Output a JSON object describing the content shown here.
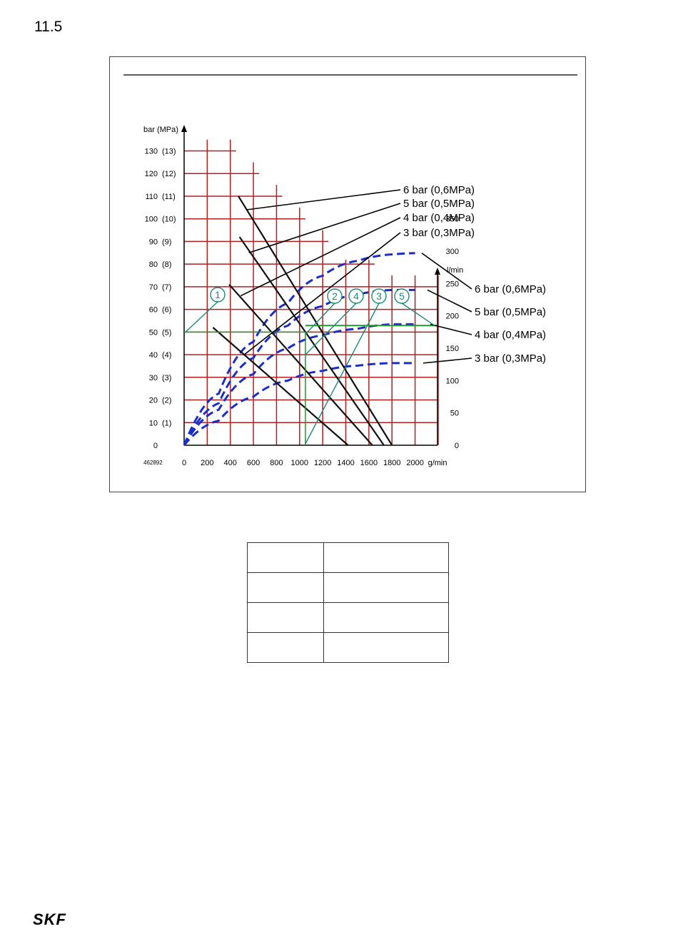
{
  "section": "11.5",
  "logo": "SKF",
  "chart_data": {
    "type": "line",
    "figure_id": "462892",
    "left_axis": {
      "unit_label": "bar (MPa)",
      "ticks": [
        {
          "bar": 0,
          "label": "0",
          "sub": ""
        },
        {
          "bar": 10,
          "label": "10",
          "sub": "(1)"
        },
        {
          "bar": 20,
          "label": "20",
          "sub": "(2)"
        },
        {
          "bar": 30,
          "label": "30",
          "sub": "(3)"
        },
        {
          "bar": 40,
          "label": "40",
          "sub": "(4)"
        },
        {
          "bar": 50,
          "label": "50",
          "sub": "(5)"
        },
        {
          "bar": 60,
          "label": "60",
          "sub": "(6)"
        },
        {
          "bar": 70,
          "label": "70",
          "sub": "(7)"
        },
        {
          "bar": 80,
          "label": "80",
          "sub": "(8)"
        },
        {
          "bar": 90,
          "label": "90",
          "sub": "(9)"
        },
        {
          "bar": 100,
          "label": "100",
          "sub": "(10)"
        },
        {
          "bar": 110,
          "label": "110",
          "sub": "(11)"
        },
        {
          "bar": 120,
          "label": "120",
          "sub": "(12)"
        },
        {
          "bar": 130,
          "label": "130",
          "sub": "(13)"
        }
      ],
      "ylim": [
        0,
        130
      ]
    },
    "right_axis": {
      "unit_label": "l/min",
      "ticks": [
        "0",
        "50",
        "100",
        "150",
        "200",
        "250",
        "300",
        "350"
      ],
      "ylim": [
        0,
        350
      ]
    },
    "x_axis": {
      "unit_label": "g/min",
      "ticks": [
        "0",
        "200",
        "400",
        "600",
        "800",
        "1000",
        "1200",
        "1400",
        "1600",
        "1800",
        "2000"
      ],
      "xlim": [
        0,
        2200
      ]
    },
    "pressure_lines": [
      {
        "label": "6 bar (0,6MPa)",
        "points": [
          [
            470,
            110
          ],
          [
            1800,
            0
          ]
        ]
      },
      {
        "label": "5 bar (0,5MPa)",
        "points": [
          [
            480,
            92
          ],
          [
            1730,
            0
          ]
        ]
      },
      {
        "label": "4 bar (0,4MPa)",
        "points": [
          [
            390,
            71
          ],
          [
            1630,
            0
          ]
        ]
      },
      {
        "label": "3 bar (0,3MPa)",
        "points": [
          [
            250,
            52
          ],
          [
            1420,
            0
          ]
        ]
      }
    ],
    "air_flow_curves": [
      {
        "label": "6 bar (0,6MPa)",
        "points": [
          [
            0,
            0
          ],
          [
            300,
            80
          ],
          [
            600,
            160
          ],
          [
            900,
            220
          ],
          [
            1200,
            262
          ],
          [
            1500,
            285
          ],
          [
            1800,
            295
          ],
          [
            2000,
            297
          ]
        ]
      },
      {
        "label": "5 bar (0,5MPa)",
        "points": [
          [
            0,
            0
          ],
          [
            300,
            65
          ],
          [
            600,
            135
          ],
          [
            900,
            185
          ],
          [
            1200,
            215
          ],
          [
            1500,
            233
          ],
          [
            1800,
            240
          ],
          [
            2000,
            240
          ]
        ]
      },
      {
        "label": "4 bar (0,4MPa)",
        "points": [
          [
            0,
            0
          ],
          [
            300,
            55
          ],
          [
            600,
            110
          ],
          [
            900,
            150
          ],
          [
            1200,
            170
          ],
          [
            1500,
            180
          ],
          [
            1800,
            187
          ],
          [
            2000,
            187
          ]
        ]
      },
      {
        "label": "3 bar (0,3MPa)",
        "points": [
          [
            0,
            0
          ],
          [
            300,
            38
          ],
          [
            600,
            75
          ],
          [
            900,
            100
          ],
          [
            1200,
            115
          ],
          [
            1500,
            123
          ],
          [
            1800,
            127
          ],
          [
            2000,
            127
          ]
        ]
      }
    ],
    "example_path": {
      "pressure_bar": 50,
      "flow_g_min": 1050,
      "air_l_min": 185
    },
    "callouts": [
      "1",
      "2",
      "4",
      "3",
      "5"
    ]
  },
  "table": [
    [
      "",
      ""
    ],
    [
      "",
      ""
    ],
    [
      "",
      ""
    ],
    [
      "",
      ""
    ]
  ]
}
